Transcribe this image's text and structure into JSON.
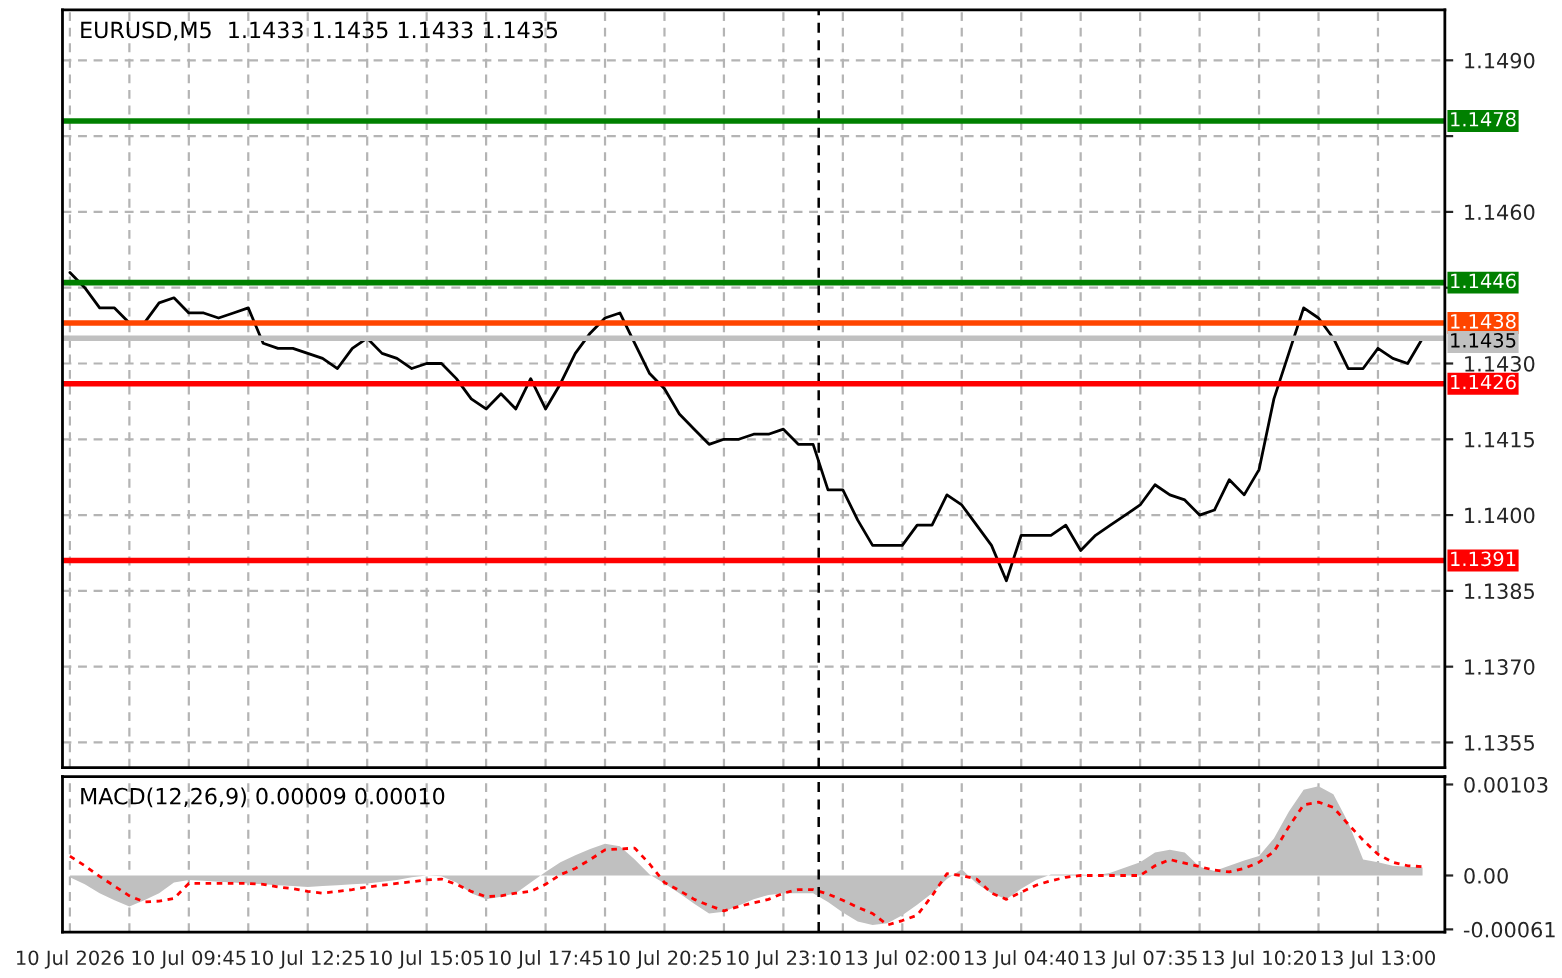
{
  "chart_data": [
    {
      "type": "line",
      "title": "EURUSD,M5  1.1433 1.1435 1.1433 1.1435",
      "color": "#000000",
      "grid": true,
      "tick_labels": "y",
      "categories": [
        null,
        null,
        null,
        null,
        null,
        null,
        null,
        null,
        null,
        null,
        null,
        null,
        null,
        null,
        null,
        null,
        null,
        null,
        null,
        null,
        null,
        null,
        null,
        null,
        null,
        null,
        null,
        null,
        null,
        null,
        null,
        null,
        null,
        null,
        null,
        null,
        null,
        null,
        null,
        null,
        null,
        null,
        null,
        null,
        null,
        null,
        null,
        null,
        null,
        null,
        null,
        null,
        null,
        null,
        null,
        null,
        null,
        null,
        null,
        null,
        null,
        null,
        null,
        null,
        null,
        null,
        null,
        null,
        null,
        null,
        null,
        null,
        null,
        null,
        null,
        null,
        null,
        null,
        null,
        null,
        null,
        null,
        null,
        null,
        null,
        null,
        null,
        null,
        null,
        null,
        null,
        null,
        null
      ],
      "values": [
        1.1448,
        1.1445,
        1.1441,
        1.1441,
        1.1438,
        1.1438,
        1.1442,
        1.1443,
        1.144,
        1.144,
        1.1439,
        1.144,
        1.1441,
        1.1434,
        1.1433,
        1.1433,
        1.1432,
        1.1431,
        1.1429,
        1.1433,
        1.1435,
        1.1432,
        1.1431,
        1.1429,
        1.143,
        1.143,
        1.1427,
        1.1423,
        1.1421,
        1.1424,
        1.1421,
        1.1427,
        1.1421,
        1.1426,
        1.1432,
        1.1436,
        1.1439,
        1.144,
        1.1434,
        1.1428,
        1.1425,
        1.142,
        1.1417,
        1.1414,
        1.1415,
        1.1415,
        1.1416,
        1.1416,
        1.1417,
        1.1414,
        1.1414,
        1.1405,
        1.1405,
        1.1399,
        1.1394,
        1.1394,
        1.1394,
        1.1398,
        1.1398,
        1.1404,
        1.1402,
        1.1398,
        1.1394,
        1.1387,
        1.1396,
        1.1396,
        1.1396,
        1.1398,
        1.1393,
        1.1396,
        1.1398,
        1.14,
        1.1402,
        1.1406,
        1.1404,
        1.1403,
        1.14,
        1.1401,
        1.1407,
        1.1404,
        1.1409,
        1.1423,
        1.1432,
        1.1441,
        1.1439,
        1.1435,
        1.1429,
        1.1429,
        1.1433,
        1.1431,
        1.143,
        1.1435,
        null
      ],
      "ylim": [
        1.135,
        1.15
      ],
      "yticks": [
        {
          "value": 1.1355,
          "label": "1.1355"
        },
        {
          "value": 1.137,
          "label": "1.1370"
        },
        {
          "value": 1.1385,
          "label": "1.1385"
        },
        {
          "value": 1.14,
          "label": "1.1400"
        },
        {
          "value": 1.1415,
          "label": "1.1415"
        },
        {
          "value": 1.143,
          "label": "1.1430"
        },
        {
          "value": 1.1445,
          "label": null
        },
        {
          "value": 1.146,
          "label": "1.1460"
        },
        {
          "value": 1.1475,
          "label": null
        },
        {
          "value": 1.149,
          "label": "1.1490"
        }
      ],
      "ref_lines": [
        {
          "axis": "y",
          "value": 1.1478,
          "label": "1.1478",
          "color": "#008000"
        },
        {
          "axis": "y",
          "value": 1.1446,
          "label": "1.1446",
          "color": "#008000"
        },
        {
          "axis": "y",
          "value": 1.1438,
          "label": "1.1438",
          "color": "#ff4500"
        },
        {
          "axis": "y",
          "value": 1.1435,
          "label": "1.1435",
          "color": "#c0c0c0"
        },
        {
          "axis": "y",
          "value": 1.1426,
          "label": "1.1426",
          "color": "#ff0000"
        },
        {
          "axis": "y",
          "value": 1.1391,
          "label": "1.1391",
          "color": "#ff0000"
        }
      ]
    },
    {
      "type": "line",
      "title": "MACD(12,26,9) 0.00009 0.00010",
      "grid": "x",
      "categories": [
        "10 Jul 2026",
        null,
        null,
        null,
        null,
        null,
        null,
        null,
        "10 Jul 09:45",
        null,
        null,
        null,
        null,
        null,
        null,
        null,
        "10 Jul 12:25",
        null,
        null,
        null,
        null,
        null,
        null,
        null,
        "10 Jul 15:05",
        null,
        null,
        null,
        null,
        null,
        null,
        null,
        "10 Jul 17:45",
        null,
        null,
        null,
        null,
        null,
        null,
        null,
        "10 Jul 20:25",
        null,
        null,
        null,
        null,
        null,
        null,
        null,
        "10 Jul 23:10",
        null,
        null,
        null,
        null,
        null,
        null,
        null,
        "13 Jul 02:00",
        null,
        null,
        null,
        null,
        null,
        null,
        null,
        "13 Jul 04:40",
        null,
        null,
        null,
        null,
        null,
        null,
        null,
        "13 Jul 07:35",
        null,
        null,
        null,
        null,
        null,
        null,
        null,
        "13 Jul 10:20",
        null,
        null,
        null,
        null,
        null,
        null,
        null,
        "13 Jul 13:00",
        null,
        null,
        null,
        null
      ],
      "series": [
        {
          "type": "area",
          "color": "#c0c0c0",
          "values": [
            -2e-05,
            -0.0001,
            -0.0002,
            -0.00028,
            -0.00035,
            -0.00028,
            -0.0002,
            -8e-05,
            -5e-05,
            -6e-05,
            -7e-05,
            -8e-05,
            -9e-05,
            -0.0001,
            -0.00011,
            -0.00012,
            -0.00013,
            -0.00012,
            -0.00011,
            -0.0001,
            -9e-05,
            -7e-05,
            -5e-05,
            -2e-05,
            0,
            -1e-05,
            -8e-05,
            -0.0002,
            -0.00027,
            -0.00024,
            -0.0002,
            -8e-05,
            4e-05,
            0.00015,
            0.00023,
            0.0003,
            0.00036,
            0.00033,
            0.00018,
            1e-05,
            -9e-05,
            -0.0002,
            -0.00032,
            -0.00043,
            -0.00041,
            -0.00034,
            -0.00027,
            -0.00022,
            -0.0002,
            -0.0002,
            -0.0002,
            -0.0003,
            -0.00042,
            -0.00052,
            -0.00056,
            -0.00054,
            -0.00045,
            -0.00033,
            -0.0002,
            -4e-05,
            7e-05,
            -9e-05,
            -0.0002,
            -0.00027,
            -0.00015,
            -5e-05,
            1e-05,
            1e-05,
            1e-05,
            0,
            3e-05,
            9e-05,
            0.00015,
            0.00026,
            0.00029,
            0.00026,
            0.0001,
            5e-05,
            0.00011,
            0.00017,
            0.00022,
            0.00042,
            0.00072,
            0.00097,
            0.00101,
            0.00092,
            0.0006,
            0.00018,
            0.00015,
            0.00011,
            0.0001,
            9e-05,
            null
          ]
        },
        {
          "type": "line",
          "color": "#ff0000",
          "line_style": "dotted",
          "values": [
            0.00022,
            0.00011,
            -1e-05,
            -0.00012,
            -0.00023,
            -0.0003,
            -0.00029,
            -0.00026,
            -9e-05,
            -9e-05,
            -9e-05,
            -9e-05,
            -9e-05,
            -0.0001,
            -0.00013,
            -0.00015,
            -0.00018,
            -0.0002,
            -0.00018,
            -0.00016,
            -0.00013,
            -0.00011,
            -9e-05,
            -7e-05,
            -5e-05,
            -4e-05,
            -0.0001,
            -0.00018,
            -0.00024,
            -0.00023,
            -0.0002,
            -0.00018,
            -0.0001,
            1e-05,
            8e-05,
            0.00018,
            0.00029,
            0.0003,
            0.00031,
            0.00013,
            -8e-05,
            -0.00017,
            -0.00027,
            -0.00034,
            -0.0004,
            -0.00035,
            -0.00031,
            -0.00027,
            -0.0002,
            -0.00016,
            -0.00016,
            -0.00021,
            -0.00028,
            -0.00036,
            -0.00043,
            -0.00056,
            -0.00051,
            -0.00045,
            -0.00023,
            2e-05,
            0,
            -4e-05,
            -0.0002,
            -0.00027,
            -0.00019,
            -0.00011,
            -6e-05,
            -2e-05,
            0,
            0,
            0,
            0,
            0,
            0.00011,
            0.00018,
            0.00014,
            0.0001,
            6e-05,
            4e-05,
            8e-05,
            0.00015,
            0.00027,
            0.00055,
            0.0008,
            0.00083,
            0.00077,
            0.00058,
            0.0004,
            0.00024,
            0.00015,
            0.00011,
            0.0001,
            null
          ]
        }
      ],
      "ylim": [
        -0.00064,
        0.00112
      ],
      "yticks": [
        {
          "value": -0.00061,
          "label": "-0.00061"
        },
        {
          "value": 0,
          "label": "0.00"
        },
        {
          "value": 0.00103,
          "label": "0.00103"
        }
      ]
    }
  ]
}
